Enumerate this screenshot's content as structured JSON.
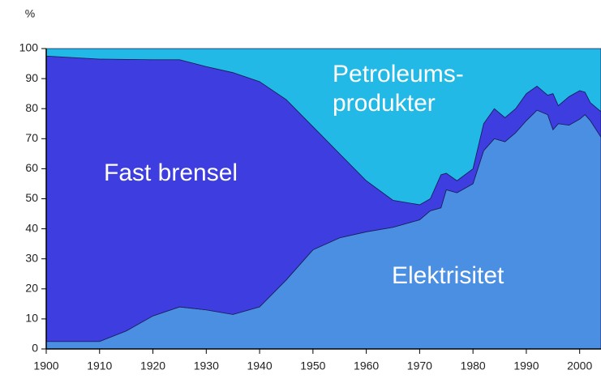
{
  "chart_data": {
    "type": "stacked_area",
    "y_label": "%",
    "x": [
      1900,
      1910,
      1915,
      1920,
      1925,
      1930,
      1935,
      1940,
      1945,
      1950,
      1955,
      1960,
      1965,
      1970,
      1972,
      1974,
      1975,
      1977,
      1980,
      1982,
      1984,
      1986,
      1988,
      1990,
      1992,
      1994,
      1995,
      1996,
      1998,
      2000,
      2001,
      2002,
      2004
    ],
    "series": [
      {
        "name": "Elektrisitet",
        "color": "#4a8fe2",
        "values": [
          2.5,
          2.5,
          6,
          11,
          14,
          13,
          11.5,
          14,
          23,
          33,
          37,
          39,
          40.5,
          43,
          46,
          47,
          53,
          52,
          55,
          66,
          70,
          69,
          72,
          76,
          79.5,
          78,
          73,
          75,
          74.5,
          76.5,
          78,
          76,
          70.5
        ]
      },
      {
        "name": "Fast brensel",
        "color": "#3d3de0",
        "values": [
          95,
          94,
          90.4,
          85.3,
          82.3,
          81,
          80.5,
          75,
          60,
          41,
          28,
          17,
          9,
          5,
          4,
          11,
          5.5,
          4,
          5,
          9,
          10,
          8,
          8,
          9,
          8,
          6.5,
          12,
          6,
          9.5,
          9.5,
          7.5,
          6,
          8.5
        ]
      },
      {
        "name": [
          "Petroleums-",
          "produkter"
        ],
        "color": "#22b9e6",
        "values": [
          2.5,
          3.5,
          3.6,
          3.7,
          3.7,
          6,
          8,
          11,
          17,
          26,
          35,
          44,
          50.5,
          52,
          50,
          42,
          41.5,
          44,
          40,
          25,
          20,
          23,
          20,
          15,
          12.5,
          15.5,
          15,
          19,
          16,
          14,
          14.5,
          18,
          21
        ]
      }
    ],
    "xlim": [
      1900,
      2004
    ],
    "xticks": [
      1900,
      1910,
      1920,
      1930,
      1940,
      1950,
      1960,
      1970,
      1980,
      1990,
      2000
    ],
    "ylim": [
      0,
      100
    ],
    "yticks": [
      0,
      10,
      20,
      30,
      40,
      50,
      60,
      70,
      80,
      90,
      100
    ]
  }
}
